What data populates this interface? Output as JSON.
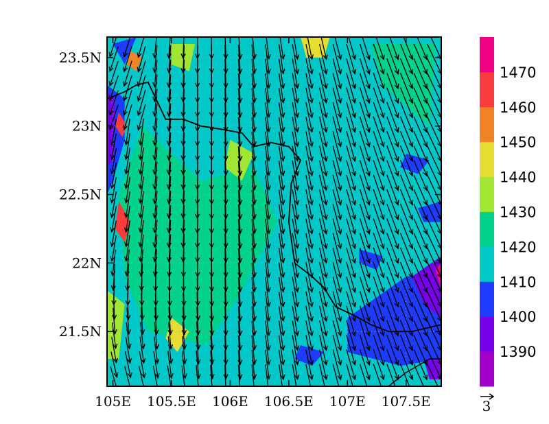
{
  "chart_data": {
    "type": "heatmap",
    "title": "",
    "xlabel": "",
    "ylabel": "",
    "xlim": [
      104.95,
      107.8
    ],
    "ylim": [
      21.1,
      23.65
    ],
    "grid": true,
    "x_ticks": [
      {
        "value": 105.0,
        "label": "105E"
      },
      {
        "value": 105.5,
        "label": "105.5E"
      },
      {
        "value": 106.0,
        "label": "106E"
      },
      {
        "value": 106.5,
        "label": "106.5E"
      },
      {
        "value": 107.0,
        "label": "107E"
      },
      {
        "value": 107.5,
        "label": "107.5E"
      }
    ],
    "y_ticks": [
      {
        "value": 21.5,
        "label": "21.5N"
      },
      {
        "value": 22.0,
        "label": "22N"
      },
      {
        "value": 22.5,
        "label": "22.5N"
      },
      {
        "value": 23.0,
        "label": "23N"
      },
      {
        "value": 23.5,
        "label": "23.5N"
      }
    ],
    "colorbar": {
      "placement": "right",
      "bands": [
        {
          "from": 1380,
          "to": 1390,
          "color": "#a000c8"
        },
        {
          "from": 1390,
          "to": 1400,
          "color": "#7800ea"
        },
        {
          "from": 1400,
          "to": 1410,
          "color": "#1e3cff"
        },
        {
          "from": 1410,
          "to": 1420,
          "color": "#00c8c8"
        },
        {
          "from": 1420,
          "to": 1430,
          "color": "#00d28c"
        },
        {
          "from": 1430,
          "to": 1440,
          "color": "#a0e632"
        },
        {
          "from": 1440,
          "to": 1450,
          "color": "#e6dc32"
        },
        {
          "from": 1450,
          "to": 1460,
          "color": "#f08228"
        },
        {
          "from": 1460,
          "to": 1470,
          "color": "#fa3c3c"
        },
        {
          "from": 1470,
          "to": 1480,
          "color": "#f00082"
        }
      ],
      "labels": [
        "1390",
        "1400",
        "1410",
        "1420",
        "1430",
        "1440",
        "1450",
        "1460",
        "1470"
      ]
    },
    "vector_reference": {
      "label": "3"
    },
    "contour_regions": [
      {
        "value": 1425,
        "polygon": [
          [
            105.25,
            23.0
          ],
          [
            105.75,
            22.6
          ],
          [
            106.2,
            22.7
          ],
          [
            106.4,
            22.3
          ],
          [
            106.1,
            21.8
          ],
          [
            105.8,
            21.4
          ],
          [
            105.3,
            21.5
          ],
          [
            105.1,
            21.9
          ],
          [
            105.05,
            22.5
          ]
        ]
      },
      {
        "value": 1425,
        "polygon": [
          [
            107.2,
            23.6
          ],
          [
            107.75,
            23.6
          ],
          [
            107.7,
            23.0
          ],
          [
            107.3,
            23.3
          ]
        ]
      },
      {
        "value": 1435,
        "polygon": [
          [
            106.0,
            22.9
          ],
          [
            106.2,
            22.8
          ],
          [
            106.1,
            22.6
          ],
          [
            105.95,
            22.7
          ]
        ]
      },
      {
        "value": 1435,
        "polygon": [
          [
            104.95,
            21.8
          ],
          [
            105.1,
            21.7
          ],
          [
            105.05,
            21.3
          ],
          [
            104.95,
            21.3
          ]
        ]
      },
      {
        "value": 1435,
        "polygon": [
          [
            105.5,
            23.6
          ],
          [
            105.7,
            23.6
          ],
          [
            105.65,
            23.4
          ],
          [
            105.5,
            23.45
          ]
        ]
      },
      {
        "value": 1445,
        "polygon": [
          [
            106.6,
            23.65
          ],
          [
            106.85,
            23.65
          ],
          [
            106.8,
            23.5
          ],
          [
            106.65,
            23.5
          ]
        ]
      },
      {
        "value": 1445,
        "polygon": [
          [
            105.5,
            21.6
          ],
          [
            105.65,
            21.5
          ],
          [
            105.55,
            21.35
          ],
          [
            105.45,
            21.45
          ]
        ]
      },
      {
        "value": 1445,
        "polygon": [
          [
            107.55,
            21.6
          ],
          [
            107.65,
            21.7
          ],
          [
            107.7,
            21.5
          ],
          [
            107.55,
            21.35
          ]
        ]
      },
      {
        "value": 1405,
        "polygon": [
          [
            107.0,
            21.6
          ],
          [
            107.5,
            21.9
          ],
          [
            107.8,
            21.95
          ],
          [
            107.8,
            21.3
          ],
          [
            107.45,
            21.25
          ],
          [
            107.0,
            21.35
          ]
        ]
      },
      {
        "value": 1405,
        "polygon": [
          [
            104.95,
            23.3
          ],
          [
            105.1,
            23.2
          ],
          [
            105.1,
            22.9
          ],
          [
            105.0,
            22.6
          ],
          [
            104.95,
            22.5
          ]
        ]
      },
      {
        "value": 1405,
        "polygon": [
          [
            105.0,
            23.6
          ],
          [
            105.2,
            23.65
          ],
          [
            105.1,
            23.45
          ]
        ]
      },
      {
        "value": 1405,
        "polygon": [
          [
            107.5,
            22.8
          ],
          [
            107.7,
            22.75
          ],
          [
            107.6,
            22.65
          ],
          [
            107.45,
            22.7
          ]
        ]
      },
      {
        "value": 1405,
        "polygon": [
          [
            106.6,
            21.4
          ],
          [
            106.8,
            21.35
          ],
          [
            106.7,
            21.25
          ],
          [
            106.55,
            21.3
          ]
        ]
      },
      {
        "value": 1405,
        "polygon": [
          [
            107.6,
            22.4
          ],
          [
            107.8,
            22.45
          ],
          [
            107.8,
            22.3
          ],
          [
            107.65,
            22.3
          ]
        ]
      },
      {
        "value": 1405,
        "polygon": [
          [
            107.1,
            22.1
          ],
          [
            107.3,
            22.05
          ],
          [
            107.25,
            21.95
          ],
          [
            107.1,
            22.0
          ]
        ]
      },
      {
        "value": 1395,
        "polygon": [
          [
            104.95,
            23.25
          ],
          [
            105.02,
            23.2
          ],
          [
            105.0,
            22.75
          ],
          [
            104.95,
            22.7
          ]
        ]
      },
      {
        "value": 1395,
        "polygon": [
          [
            107.55,
            21.9
          ],
          [
            107.8,
            22.05
          ],
          [
            107.8,
            21.6
          ],
          [
            107.65,
            21.7
          ]
        ]
      },
      {
        "value": 1395,
        "polygon": [
          [
            107.65,
            21.3
          ],
          [
            107.8,
            21.3
          ],
          [
            107.8,
            21.15
          ],
          [
            107.7,
            21.15
          ]
        ]
      },
      {
        "value": 1465,
        "polygon": [
          [
            105.05,
            22.45
          ],
          [
            105.15,
            22.3
          ],
          [
            105.1,
            22.15
          ],
          [
            105.02,
            22.25
          ]
        ]
      },
      {
        "value": 1465,
        "polygon": [
          [
            105.05,
            23.1
          ],
          [
            105.12,
            23.0
          ],
          [
            105.08,
            22.92
          ],
          [
            105.02,
            23.0
          ]
        ]
      },
      {
        "value": 1455,
        "polygon": [
          [
            105.15,
            23.55
          ],
          [
            105.25,
            23.5
          ],
          [
            105.2,
            23.4
          ],
          [
            105.12,
            23.45
          ]
        ]
      },
      {
        "value": 1475,
        "polygon": [
          [
            107.75,
            21.95
          ],
          [
            107.8,
            22.0
          ],
          [
            107.8,
            21.8
          ]
        ]
      }
    ],
    "boundary_line": [
      [
        104.95,
        23.2
      ],
      [
        105.1,
        23.25
      ],
      [
        105.2,
        23.3
      ],
      [
        105.3,
        23.32
      ],
      [
        105.45,
        23.05
      ],
      [
        105.6,
        23.05
      ],
      [
        105.75,
        23.0
      ],
      [
        105.9,
        22.98
      ],
      [
        106.1,
        22.95
      ],
      [
        106.2,
        22.85
      ],
      [
        106.35,
        22.88
      ],
      [
        106.5,
        22.85
      ],
      [
        106.6,
        22.75
      ],
      [
        106.52,
        22.58
      ],
      [
        106.5,
        22.3
      ],
      [
        106.55,
        22.0
      ],
      [
        106.7,
        21.9
      ],
      [
        106.8,
        21.82
      ],
      [
        106.9,
        21.68
      ],
      [
        107.05,
        21.62
      ],
      [
        107.2,
        21.55
      ],
      [
        107.35,
        21.5
      ],
      [
        107.55,
        21.5
      ],
      [
        107.8,
        21.55
      ]
    ],
    "coastline": [
      [
        107.35,
        21.1
      ],
      [
        107.5,
        21.2
      ],
      [
        107.6,
        21.25
      ],
      [
        107.7,
        21.3
      ],
      [
        107.8,
        21.3
      ]
    ],
    "wind_field": {
      "nx": 24,
      "ny": 24,
      "reference_speed": 3
    }
  }
}
